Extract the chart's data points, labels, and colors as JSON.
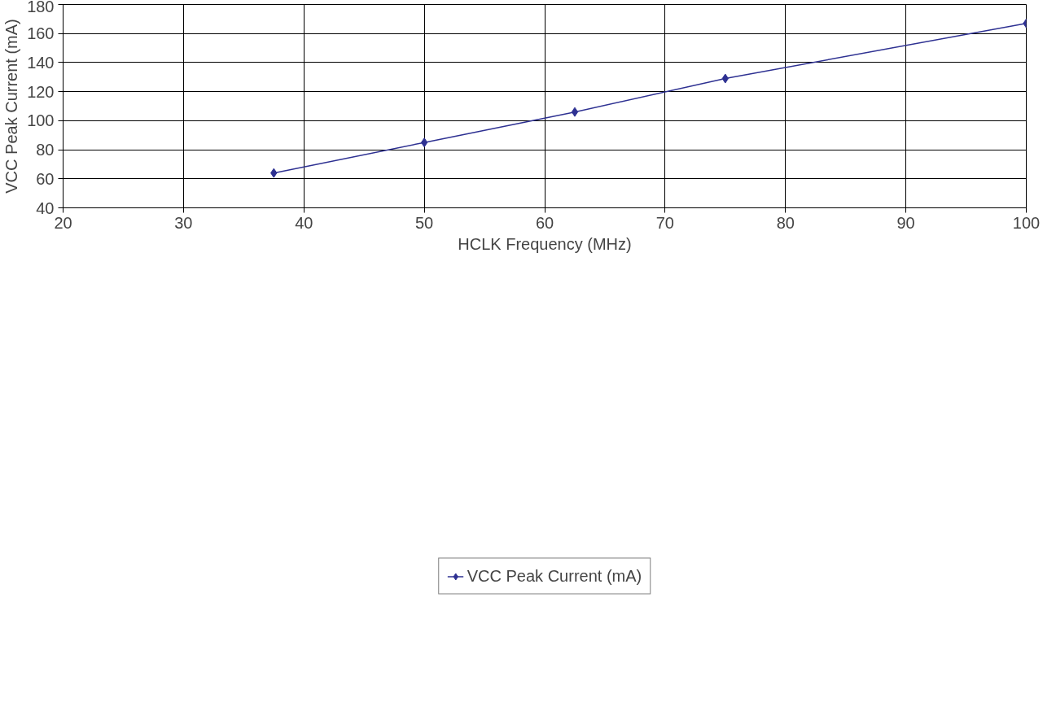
{
  "chart_data": {
    "type": "line",
    "xlabel": "HCLK Frequency (MHz)",
    "ylabel": "VCC Peak Current (mA)",
    "x": [
      37.5,
      50,
      62.5,
      75,
      100
    ],
    "series": [
      {
        "name": "VCC Peak Current (mA)",
        "color": "#2e3192",
        "values": [
          64,
          85,
          106,
          129,
          167
        ]
      }
    ],
    "xlim": [
      20,
      100
    ],
    "xticks": [
      20,
      30,
      40,
      50,
      60,
      70,
      80,
      90,
      100
    ],
    "ylim": [
      40,
      180
    ],
    "yticks": [
      40,
      60,
      80,
      100,
      120,
      140,
      160,
      180
    ],
    "grid": true,
    "legend": "bottom",
    "marker": "diamond",
    "line_style": "solid"
  }
}
